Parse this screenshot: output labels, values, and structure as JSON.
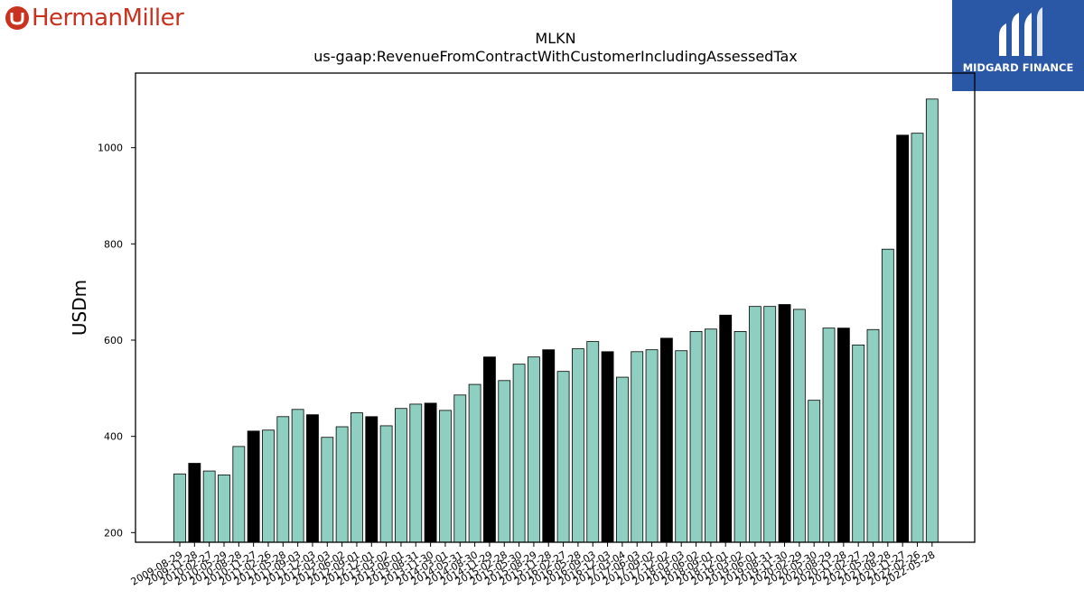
{
  "logos": {
    "left_brand": "HermanMiller",
    "right_brand": "MIDGARD FINANCE"
  },
  "colors": {
    "bar_default": "#8ecfc2",
    "bar_highlight": "#000000",
    "herman_miller_red": "#c8321e",
    "midgard_blue": "#2b58a6"
  },
  "chart_data": {
    "type": "bar",
    "title": "MLKN",
    "subtitle": "us-gaap:RevenueFromContractWithCustomerIncludingAssessedTax",
    "ylabel": "USDm",
    "xlabel": "",
    "ylim": [
      180,
      1155
    ],
    "yticks": [
      200,
      400,
      600,
      800,
      1000
    ],
    "grid": false,
    "categories": [
      "2009-08-29",
      "2009-11-28",
      "2010-02-27",
      "2010-05-29",
      "2010-08-28",
      "2010-11-27",
      "2011-02-26",
      "2011-05-28",
      "2011-09-03",
      "2011-12-03",
      "2012-03-03",
      "2012-06-02",
      "2012-09-01",
      "2012-12-01",
      "2013-03-02",
      "2013-06-01",
      "2013-08-31",
      "2013-11-30",
      "2014-03-01",
      "2014-05-31",
      "2014-08-30",
      "2014-11-29",
      "2015-02-28",
      "2015-05-30",
      "2015-08-29",
      "2015-11-28",
      "2016-02-27",
      "2016-05-28",
      "2016-09-03",
      "2016-12-03",
      "2017-03-04",
      "2017-06-03",
      "2017-09-02",
      "2017-12-02",
      "2018-03-03",
      "2018-06-02",
      "2018-09-01",
      "2018-12-01",
      "2019-03-02",
      "2019-06-01",
      "2019-08-31",
      "2019-11-30",
      "2020-02-29",
      "2020-05-30",
      "2020-08-29",
      "2020-11-28",
      "2021-02-27",
      "2021-05-29",
      "2021-08-28",
      "2021-11-27",
      "2022-02-26",
      "2022-05-28"
    ],
    "values": [
      322,
      344,
      328,
      320,
      379,
      411,
      413,
      441,
      456,
      445,
      398,
      420,
      449,
      441,
      422,
      458,
      467,
      469,
      454,
      486,
      508,
      565,
      516,
      550,
      565,
      580,
      535,
      582,
      597,
      576,
      523,
      576,
      580,
      604,
      578,
      618,
      623,
      652,
      618,
      670,
      670,
      674,
      664,
      475,
      625,
      625,
      590,
      622,
      789,
      1026,
      1030,
      1101
    ],
    "highlighted_indices": [
      1,
      5,
      9,
      13,
      17,
      21,
      25,
      29,
      33,
      37,
      41,
      45,
      49
    ]
  }
}
